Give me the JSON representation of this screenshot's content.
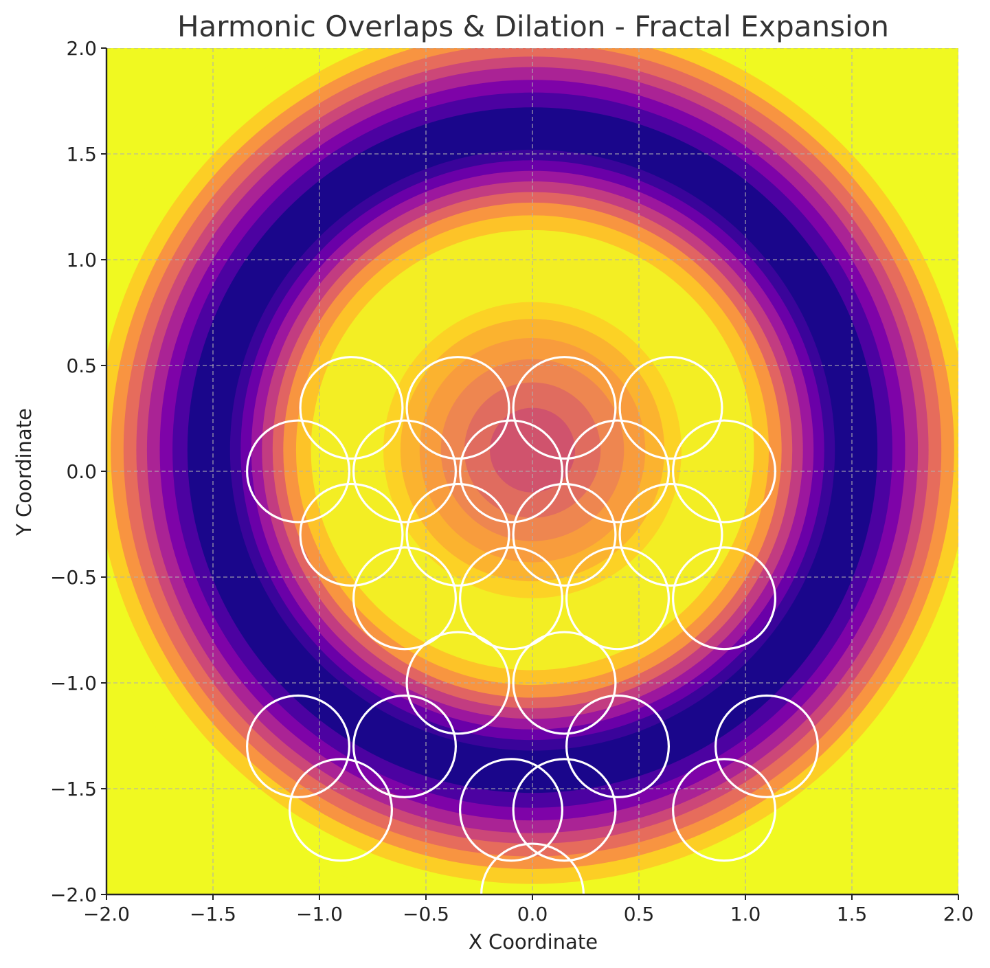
{
  "chart_data": {
    "type": "heatmap",
    "title": "Harmonic Overlaps & Dilation - Fractal Expansion",
    "xlabel": "X Coordinate",
    "ylabel": "Y Coordinate",
    "xlim": [
      -2.0,
      2.0
    ],
    "ylim": [
      -2.0,
      2.0
    ],
    "xticks": [
      -2.0,
      -1.5,
      -1.0,
      -0.5,
      0.0,
      0.5,
      1.0,
      1.5,
      2.0
    ],
    "yticks": [
      -2.0,
      -1.5,
      -1.0,
      -0.5,
      0.0,
      0.5,
      1.0,
      1.5,
      2.0
    ],
    "xtick_labels": [
      "−2.0",
      "−1.5",
      "−1.0",
      "−0.5",
      "0.0",
      "0.5",
      "1.0",
      "1.5",
      "2.0"
    ],
    "ytick_labels": [
      "−2.0",
      "−1.5",
      "−1.0",
      "−0.5",
      "0.0",
      "0.5",
      "1.0",
      "1.5",
      "2.0"
    ],
    "grid": true,
    "colormap": "plasma",
    "background_field": {
      "description": "radial contour field centered near (0, 0.1)",
      "center": [
        0.0,
        0.1
      ],
      "bands": [
        {
          "r": 2.2,
          "color": "#f0f921"
        },
        {
          "r": 2.05,
          "color": "#fcce25"
        },
        {
          "r": 1.98,
          "color": "#f89441"
        },
        {
          "r": 1.92,
          "color": "#e66c5c"
        },
        {
          "r": 1.86,
          "color": "#cc4778"
        },
        {
          "r": 1.81,
          "color": "#aa2395"
        },
        {
          "r": 1.75,
          "color": "#7e03a8"
        },
        {
          "r": 1.69,
          "color": "#4c02a1"
        },
        {
          "r": 1.62,
          "color": "#1a068b"
        },
        {
          "r": 1.42,
          "color": "#3a049a"
        },
        {
          "r": 1.37,
          "color": "#6a00a8"
        },
        {
          "r": 1.32,
          "color": "#9c179e"
        },
        {
          "r": 1.27,
          "color": "#c23c81"
        },
        {
          "r": 1.22,
          "color": "#e16462"
        },
        {
          "r": 1.17,
          "color": "#f89540"
        },
        {
          "r": 1.11,
          "color": "#fdc328"
        },
        {
          "r": 1.04,
          "color": "#f3ee24"
        },
        {
          "r": 0.7,
          "color": "#fcd225"
        },
        {
          "r": 0.62,
          "color": "#fbb32f"
        },
        {
          "r": 0.53,
          "color": "#f89c3d"
        },
        {
          "r": 0.43,
          "color": "#ee8650"
        },
        {
          "r": 0.32,
          "color": "#e06c5f"
        },
        {
          "r": 0.2,
          "color": "#d0536d"
        }
      ]
    },
    "circles": {
      "radius": 0.24,
      "color": "#ffffff",
      "centers": [
        [
          -0.85,
          0.3
        ],
        [
          -0.35,
          0.3
        ],
        [
          0.15,
          0.3
        ],
        [
          0.65,
          0.3
        ],
        [
          -1.1,
          0.0
        ],
        [
          -0.6,
          0.0
        ],
        [
          -0.1,
          0.0
        ],
        [
          0.4,
          0.0
        ],
        [
          0.9,
          0.0
        ],
        [
          -0.85,
          -0.3
        ],
        [
          -0.35,
          -0.3
        ],
        [
          0.15,
          -0.3
        ],
        [
          0.65,
          -0.3
        ],
        [
          -0.6,
          -0.6
        ],
        [
          -0.1,
          -0.6
        ],
        [
          0.4,
          -0.6
        ],
        [
          0.9,
          -0.6
        ],
        [
          -0.35,
          -1.0
        ],
        [
          0.15,
          -1.0
        ],
        [
          -1.1,
          -1.3
        ],
        [
          -0.6,
          -1.3
        ],
        [
          0.4,
          -1.3
        ],
        [
          1.1,
          -1.3
        ],
        [
          -0.9,
          -1.6
        ],
        [
          -0.1,
          -1.6
        ],
        [
          0.15,
          -1.6
        ],
        [
          0.9,
          -1.6
        ],
        [
          0.0,
          -2.0
        ]
      ]
    }
  }
}
